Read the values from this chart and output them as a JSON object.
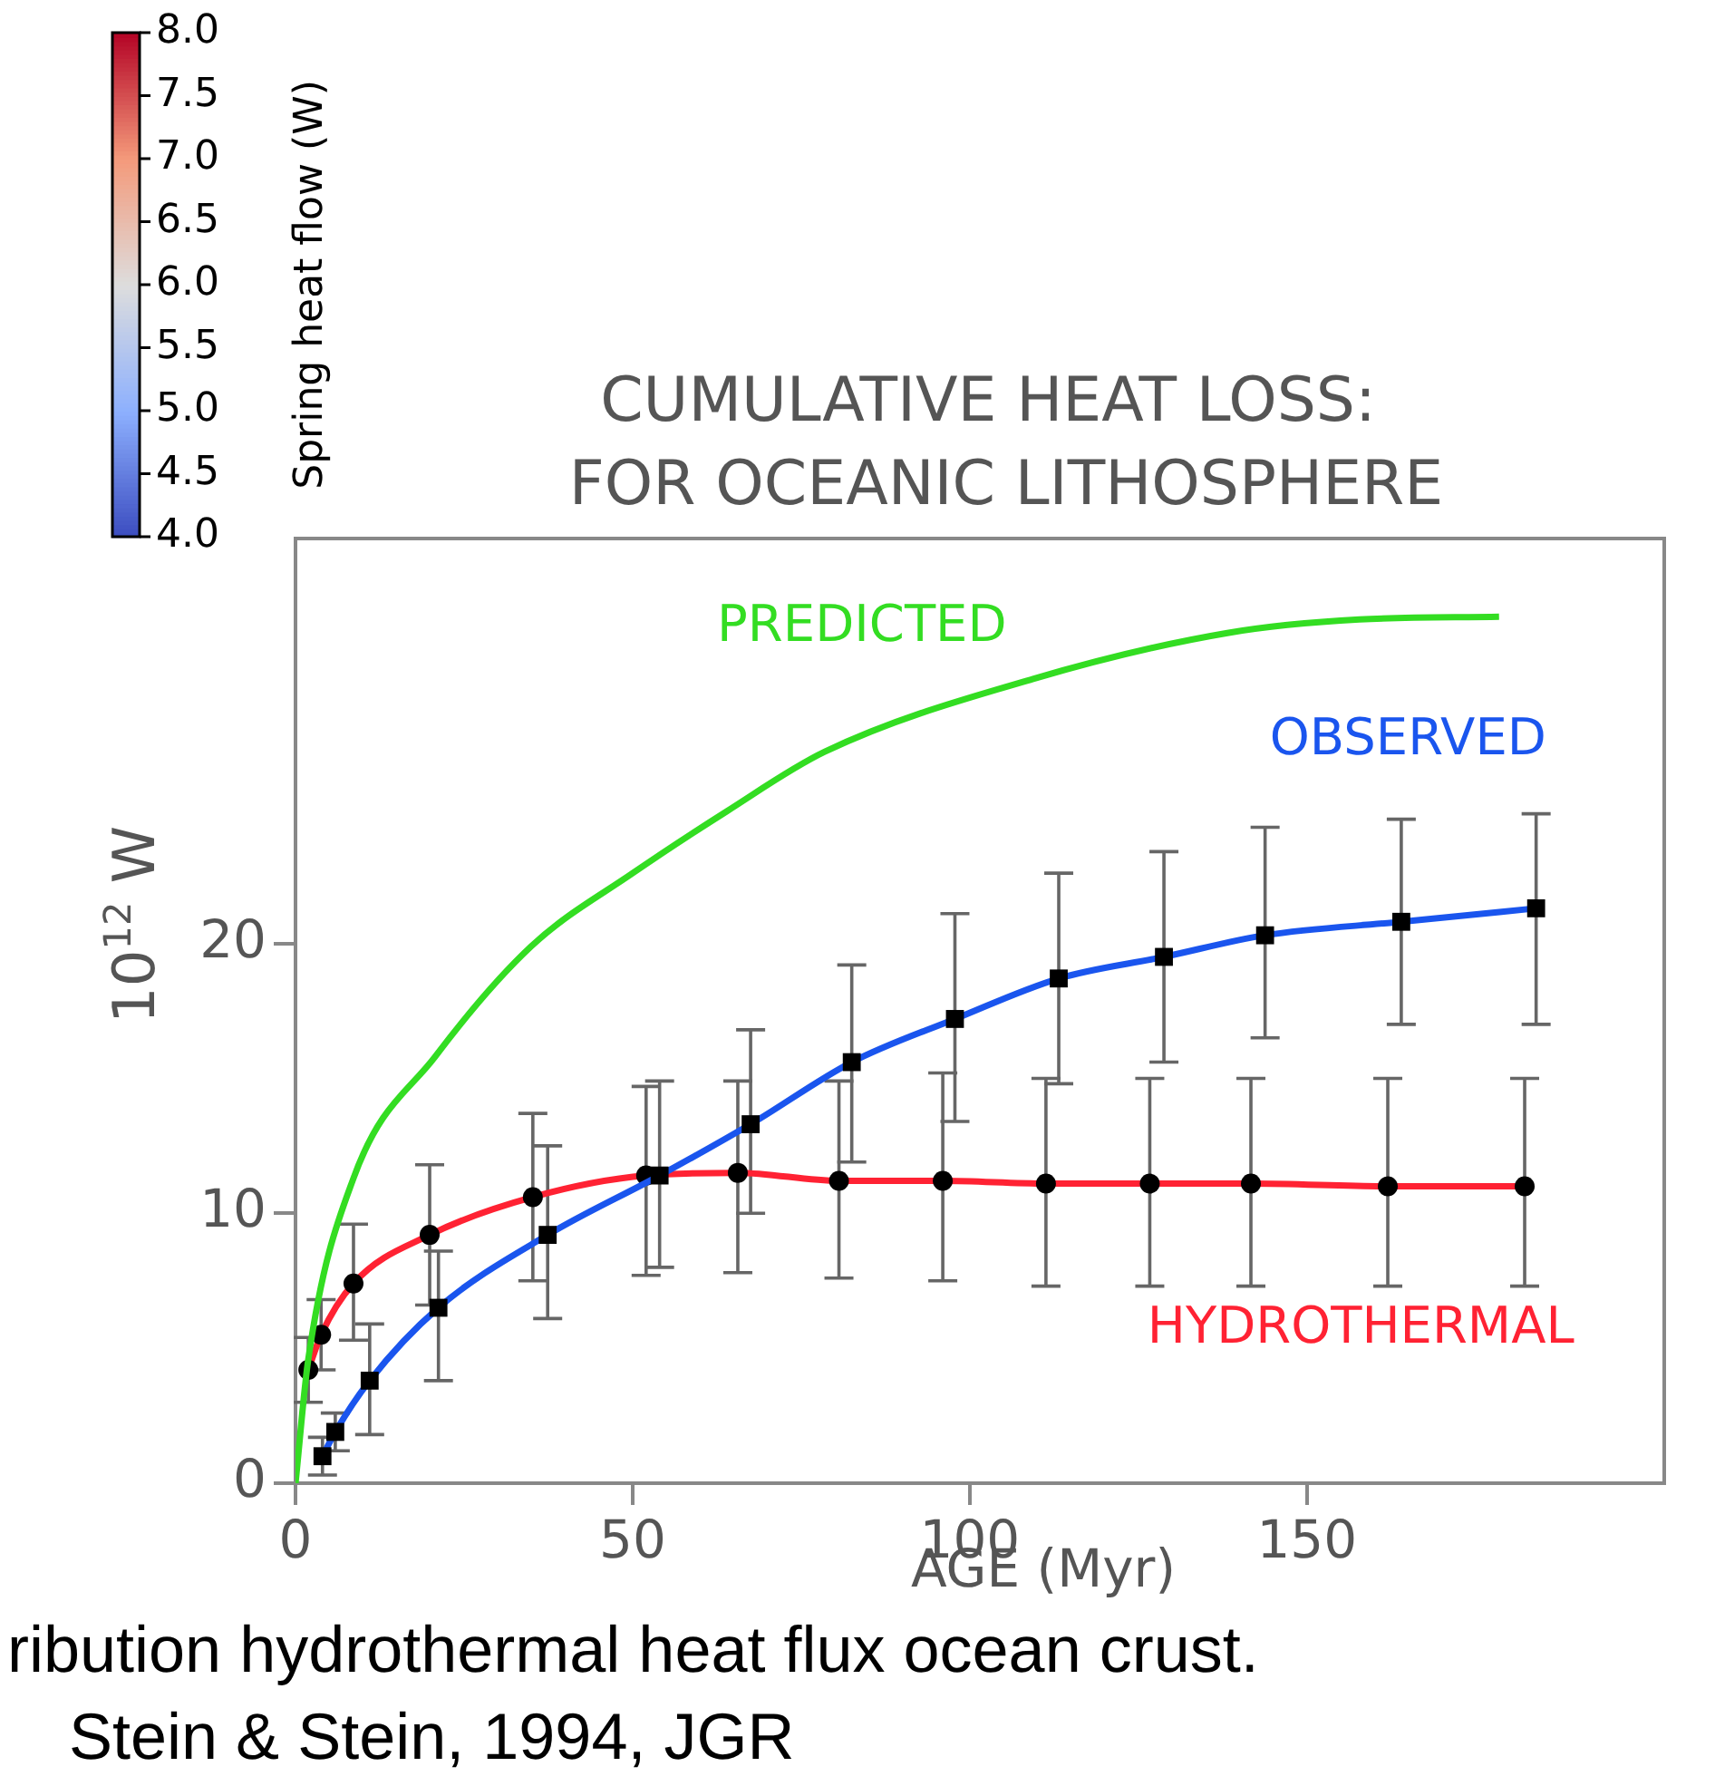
{
  "chart_data": {
    "type": "line",
    "title": "CUMULATIVE HEAT LOSS:",
    "subtitle": "FOR OCEANIC LITHOSPHERE",
    "xlabel": "AGE (Myr)",
    "ylabel": "10$^{12}$ W",
    "xlim": [
      0,
      203
    ],
    "xticks": [
      0,
      50,
      100,
      150
    ],
    "ylim": [
      0,
      35
    ],
    "yticks": [
      0,
      10,
      20
    ],
    "grid": false,
    "legend": false,
    "line_style": "solid",
    "series": [
      {
        "name": "PREDICTED",
        "color": "#33dd22",
        "marker": "none",
        "x": [
          0,
          1.9,
          8.6,
          20.7,
          35,
          50,
          64,
          78.5,
          109.4,
          138.2,
          157.8,
          178.5
        ],
        "values": [
          0,
          4.6,
          11.3,
          15.8,
          19.9,
          22.6,
          24.9,
          27.1,
          29.8,
          31.5,
          32,
          32.1
        ]
      },
      {
        "name": "OBSERVED",
        "color": "#1a55ee",
        "marker": "square",
        "x": [
          4,
          5.9,
          11,
          21.2,
          37.4,
          54,
          67.5,
          82.5,
          97.8,
          113.2,
          128.8,
          143.8,
          164,
          184
        ],
        "values": [
          1,
          1.9,
          3.8,
          6.5,
          9.2,
          11.4,
          13.3,
          15.6,
          17.2,
          18.7,
          19.5,
          20.3,
          20.8,
          21.3
        ],
        "errors": [
          [
            0.3,
            1.7
          ],
          [
            1.2,
            2.6
          ],
          [
            1.8,
            5.9
          ],
          [
            3.8,
            8.6
          ],
          [
            6.1,
            12.5
          ],
          [
            8,
            14.9
          ],
          [
            10,
            16.8
          ],
          [
            11.9,
            19.2
          ],
          [
            13.4,
            21.1
          ],
          [
            14.8,
            22.6
          ],
          [
            15.6,
            23.4
          ],
          [
            16.5,
            24.3
          ],
          [
            17,
            24.6
          ],
          [
            17,
            24.8
          ]
        ]
      },
      {
        "name": "HYDROTHERMAL",
        "color": "#ff2233",
        "marker": "circle",
        "x": [
          1.9,
          3.8,
          8.6,
          19.9,
          35.2,
          52,
          65.6,
          80.6,
          96,
          111.3,
          126.7,
          141.7,
          162,
          182.3
        ],
        "values": [
          4.2,
          5.5,
          7.4,
          9.2,
          10.6,
          11.4,
          11.5,
          11.2,
          11.2,
          11.1,
          11.1,
          11.1,
          11,
          11
        ],
        "errors": [
          [
            3,
            5.4
          ],
          [
            4.2,
            6.8
          ],
          [
            5.3,
            9.6
          ],
          [
            6.6,
            11.8
          ],
          [
            7.5,
            13.7
          ],
          [
            7.7,
            14.7
          ],
          [
            7.8,
            14.9
          ],
          [
            7.6,
            14.9
          ],
          [
            7.5,
            15.2
          ],
          [
            7.3,
            15
          ],
          [
            7.3,
            15
          ],
          [
            7.3,
            15
          ],
          [
            7.3,
            15
          ],
          [
            7.3,
            15
          ]
        ]
      }
    ],
    "clabel": "Spring heat flow (W)",
    "clim": [
      4,
      8
    ],
    "cticks": [
      {
        "value": 4,
        "label": "4.0"
      },
      {
        "value": 4.5,
        "label": "4.5"
      },
      {
        "value": 5,
        "label": "5.0"
      },
      {
        "value": 5.5,
        "label": "5.5"
      },
      {
        "value": 6,
        "label": "6.0"
      },
      {
        "value": 6.5,
        "label": "6.5"
      },
      {
        "value": 7,
        "label": "7.0"
      },
      {
        "value": 7.5,
        "label": "7.5"
      },
      {
        "value": 8,
        "label": "8.0"
      }
    ],
    "annotations": [
      "ribution hydrothermal heat flux ocean crust.",
      "Stein & Stein, 1994, JGR"
    ]
  }
}
